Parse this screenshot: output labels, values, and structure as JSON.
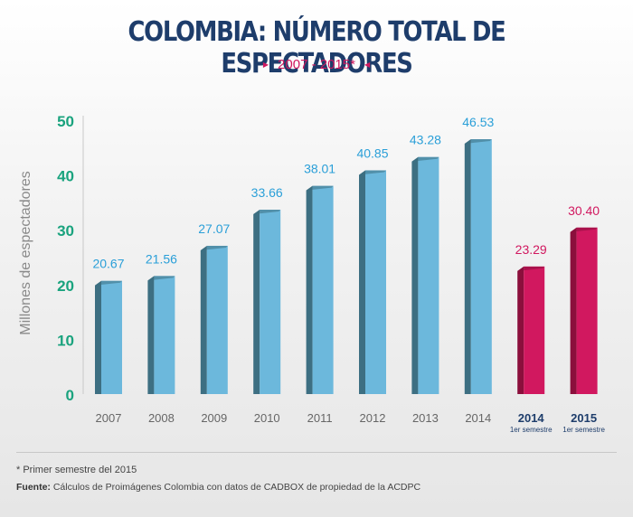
{
  "title": "COLOMBIA: NÚMERO TOTAL DE ESPECTADORES",
  "subtitle": "2007 - 2015*",
  "footnote": "* Primer semestre del 2015",
  "source": {
    "label": "Fuente:",
    "text": "Cálculos de Proimágenes Colombia con datos de CADBOX de propiedad de la ACDPC"
  },
  "colors": {
    "title": "#1e3d6b",
    "accent": "#d1185f",
    "bar_blue_front": "#6cb8dc",
    "bar_blue_side": "#3d6f82",
    "bar_pink_front": "#d1185f",
    "bar_pink_side": "#8b0f3c",
    "label_blue": "#2a9fd8",
    "axis_teal": "#1aa37e"
  },
  "chart_data": {
    "type": "bar",
    "ylabel": "Millones de espectadores",
    "xlabel": "",
    "ylim": [
      0,
      50
    ],
    "yticks": [
      0,
      10,
      20,
      30,
      40,
      50
    ],
    "categories": [
      {
        "label": "2007",
        "sublabel": ""
      },
      {
        "label": "2008",
        "sublabel": ""
      },
      {
        "label": "2009",
        "sublabel": ""
      },
      {
        "label": "2010",
        "sublabel": ""
      },
      {
        "label": "2011",
        "sublabel": ""
      },
      {
        "label": "2012",
        "sublabel": ""
      },
      {
        "label": "2013",
        "sublabel": ""
      },
      {
        "label": "2014",
        "sublabel": ""
      },
      {
        "label": "2014",
        "sublabel": "1er semestre"
      },
      {
        "label": "2015",
        "sublabel": "1er semestre"
      }
    ],
    "values": [
      20.67,
      21.56,
      27.07,
      33.66,
      38.01,
      40.85,
      43.28,
      46.53,
      23.29,
      30.4
    ],
    "value_labels": [
      "20.67",
      "21.56",
      "27.07",
      "33.66",
      "38.01",
      "40.85",
      "43.28",
      "46.53",
      "23.29",
      "30.40"
    ],
    "highlight": [
      false,
      false,
      false,
      false,
      false,
      false,
      false,
      false,
      true,
      true
    ]
  }
}
